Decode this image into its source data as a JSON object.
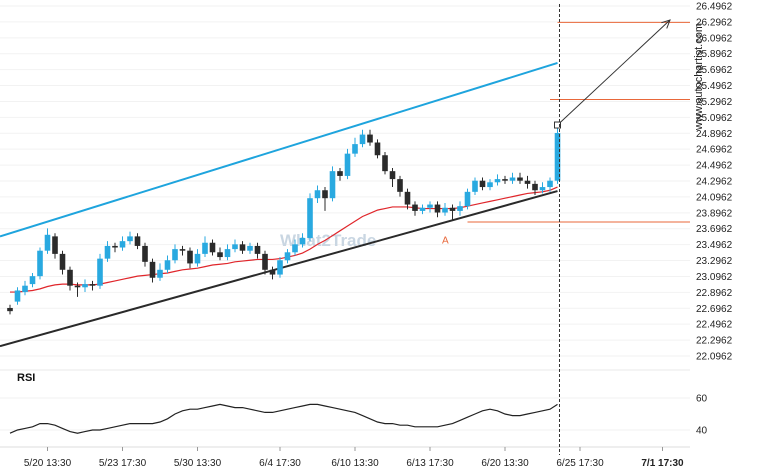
{
  "chart_data": {
    "type": "candlestick",
    "price_axis": {
      "ticks": [
        "26.4962",
        "26.2962",
        "26.0962",
        "25.8962",
        "25.6962",
        "25.4962",
        "25.2962",
        "25.0962",
        "24.8962",
        "24.6962",
        "24.4962",
        "24.2962",
        "24.0962",
        "23.8962",
        "23.6962",
        "23.4962",
        "23.2962",
        "23.0962",
        "22.8962",
        "22.6962",
        "22.4962",
        "22.2962",
        "22.0962"
      ],
      "range": [
        22.0962,
        26.4962
      ]
    },
    "rsi_axis": {
      "ticks": [
        "60",
        "40"
      ],
      "range": [
        30,
        70
      ]
    },
    "x_labels": [
      {
        "text": "5/20 13:30",
        "index": 5
      },
      {
        "text": "5/23 17:30",
        "index": 15
      },
      {
        "text": "5/30 13:30",
        "index": 25
      },
      {
        "text": "6/4 17:30",
        "index": 36
      },
      {
        "text": "6/10 13:30",
        "index": 46
      },
      {
        "text": "6/13 17:30",
        "index": 56
      },
      {
        "text": "6/20 13:30",
        "index": 66
      },
      {
        "text": "6/25 17:30",
        "index": 76
      },
      {
        "text": "7/1 17:30",
        "index": 87,
        "bold": true
      }
    ],
    "candles": [
      [
        22.7,
        22.66,
        22.74,
        22.62
      ],
      [
        22.78,
        22.92,
        22.96,
        22.74
      ],
      [
        22.9,
        22.98,
        23.04,
        22.86
      ],
      [
        23.0,
        23.1,
        23.14,
        22.96
      ],
      [
        23.1,
        23.42,
        23.46,
        23.06
      ],
      [
        23.42,
        23.62,
        23.7,
        23.38
      ],
      [
        23.6,
        23.38,
        23.64,
        23.32
      ],
      [
        23.38,
        23.18,
        23.42,
        23.12
      ],
      [
        23.18,
        22.98,
        23.22,
        22.92
      ],
      [
        22.98,
        22.96,
        23.02,
        22.84
      ],
      [
        22.96,
        23.0,
        23.06,
        22.9
      ],
      [
        23.0,
        22.98,
        23.04,
        22.92
      ],
      [
        22.98,
        23.32,
        23.38,
        22.94
      ],
      [
        23.32,
        23.48,
        23.54,
        23.28
      ],
      [
        23.48,
        23.46,
        23.52,
        23.4
      ],
      [
        23.46,
        23.54,
        23.6,
        23.42
      ],
      [
        23.54,
        23.6,
        23.66,
        23.5
      ],
      [
        23.6,
        23.48,
        23.64,
        23.44
      ],
      [
        23.48,
        23.28,
        23.52,
        23.22
      ],
      [
        23.28,
        23.08,
        23.32,
        23.02
      ],
      [
        23.08,
        23.18,
        23.26,
        23.04
      ],
      [
        23.18,
        23.3,
        23.36,
        23.14
      ],
      [
        23.3,
        23.44,
        23.5,
        23.26
      ],
      [
        23.44,
        23.42,
        23.48,
        23.36
      ],
      [
        23.42,
        23.26,
        23.46,
        23.2
      ],
      [
        23.26,
        23.38,
        23.44,
        23.22
      ],
      [
        23.38,
        23.52,
        23.6,
        23.34
      ],
      [
        23.52,
        23.4,
        23.56,
        23.36
      ],
      [
        23.4,
        23.34,
        23.46,
        23.3
      ],
      [
        23.34,
        23.44,
        23.5,
        23.3
      ],
      [
        23.44,
        23.5,
        23.56,
        23.4
      ],
      [
        23.5,
        23.42,
        23.54,
        23.38
      ],
      [
        23.42,
        23.48,
        23.52,
        23.38
      ],
      [
        23.48,
        23.38,
        23.52,
        23.32
      ],
      [
        23.38,
        23.18,
        23.42,
        23.12
      ],
      [
        23.18,
        23.12,
        23.22,
        23.06
      ],
      [
        23.12,
        23.3,
        23.34,
        23.08
      ],
      [
        23.3,
        23.4,
        23.44,
        23.26
      ],
      [
        23.4,
        23.5,
        23.56,
        23.36
      ],
      [
        23.5,
        23.58,
        23.64,
        23.46
      ],
      [
        23.58,
        24.08,
        24.14,
        23.54
      ],
      [
        24.08,
        24.18,
        24.24,
        24.02
      ],
      [
        24.18,
        24.08,
        24.22,
        23.92
      ],
      [
        24.08,
        24.42,
        24.48,
        24.04
      ],
      [
        24.42,
        24.36,
        24.46,
        24.3
      ],
      [
        24.36,
        24.64,
        24.7,
        24.32
      ],
      [
        24.64,
        24.76,
        24.84,
        24.6
      ],
      [
        24.76,
        24.88,
        24.94,
        24.72
      ],
      [
        24.88,
        24.78,
        24.94,
        24.74
      ],
      [
        24.78,
        24.62,
        24.82,
        24.58
      ],
      [
        24.62,
        24.42,
        24.66,
        24.38
      ],
      [
        24.42,
        24.32,
        24.46,
        24.22
      ],
      [
        24.32,
        24.16,
        24.36,
        24.1
      ],
      [
        24.16,
        24.0,
        24.2,
        23.94
      ],
      [
        24.0,
        23.92,
        24.04,
        23.86
      ],
      [
        23.92,
        23.96,
        24.0,
        23.88
      ],
      [
        23.96,
        24.0,
        24.04,
        23.9
      ],
      [
        24.0,
        23.9,
        24.04,
        23.84
      ],
      [
        23.9,
        23.96,
        24.02,
        23.86
      ],
      [
        23.96,
        23.92,
        24.0,
        23.8
      ],
      [
        23.92,
        23.98,
        24.04,
        23.86
      ],
      [
        23.98,
        24.16,
        24.2,
        23.94
      ],
      [
        24.16,
        24.3,
        24.34,
        24.12
      ],
      [
        24.3,
        24.22,
        24.34,
        24.18
      ],
      [
        24.22,
        24.28,
        24.32,
        24.18
      ],
      [
        24.28,
        24.32,
        24.38,
        24.24
      ],
      [
        24.32,
        24.3,
        24.36,
        24.26
      ],
      [
        24.3,
        24.34,
        24.4,
        24.26
      ],
      [
        24.34,
        24.3,
        24.4,
        24.26
      ],
      [
        24.3,
        24.26,
        24.36,
        24.2
      ],
      [
        24.26,
        24.18,
        24.3,
        24.12
      ],
      [
        24.18,
        24.22,
        24.28,
        24.14
      ],
      [
        24.22,
        24.3,
        24.34,
        24.16
      ],
      [
        24.3,
        24.9,
        24.96,
        24.26
      ]
    ],
    "ma": [
      22.9,
      22.9,
      22.91,
      22.92,
      22.94,
      22.97,
      22.99,
      23.0,
      23.0,
      22.99,
      22.99,
      22.99,
      23.0,
      23.02,
      23.04,
      23.06,
      23.08,
      23.1,
      23.11,
      23.12,
      23.13,
      23.14,
      23.16,
      23.18,
      23.19,
      23.2,
      23.22,
      23.24,
      23.25,
      23.26,
      23.28,
      23.29,
      23.3,
      23.31,
      23.31,
      23.31,
      23.32,
      23.34,
      23.36,
      23.39,
      23.44,
      23.5,
      23.55,
      23.61,
      23.67,
      23.73,
      23.79,
      23.85,
      23.89,
      23.93,
      23.95,
      23.97,
      23.97,
      23.97,
      23.96,
      23.95,
      23.95,
      23.95,
      23.95,
      23.95,
      23.96,
      23.98,
      24.0,
      24.02,
      24.04,
      24.06,
      24.08,
      24.1,
      24.12,
      24.14,
      24.15,
      24.16,
      24.18,
      24.22
    ],
    "channel": {
      "upper": [
        [
          0,
          23.6
        ],
        [
          73,
          25.78
        ]
      ],
      "lower": [
        [
          0,
          22.22
        ],
        [
          73,
          24.17
        ]
      ]
    },
    "levels": [
      {
        "value": 26.29,
        "from_index": 73
      },
      {
        "value": 25.32,
        "from_index": 72
      },
      {
        "value": 23.78,
        "from_index": 61
      }
    ],
    "projection": {
      "from": [
        73,
        25.0
      ],
      "to": [
        88,
        26.32
      ]
    },
    "point_label": {
      "text": "A",
      "index": 58,
      "value": 23.66
    },
    "rsi": [
      38,
      40,
      41,
      42,
      44,
      44,
      43,
      41,
      39,
      38,
      39,
      40,
      40,
      41,
      42,
      43,
      44,
      44,
      44,
      44,
      45,
      47,
      50,
      52,
      53,
      53,
      54,
      55,
      56,
      55,
      54,
      54,
      53,
      52,
      51,
      51,
      52,
      53,
      54,
      55,
      56,
      56,
      55,
      54,
      53,
      52,
      51,
      49,
      47,
      45,
      44,
      44,
      43,
      43,
      42,
      42,
      42,
      42,
      43,
      44,
      46,
      48,
      50,
      52,
      53,
      52,
      50,
      49,
      49,
      50,
      51,
      52,
      53,
      56
    ],
    "watermark": "What2Trade",
    "site": "www.autochartist.com",
    "rsi_label": "RSI",
    "colors": {
      "bull": "#29a9e0",
      "bear": "#2b2b2b",
      "ma": "#e0262b",
      "upper": "#1ea4dd",
      "lower": "#2a2a2a",
      "level": "#e8673a",
      "projection": "#333333",
      "rsi": "#222222"
    }
  }
}
